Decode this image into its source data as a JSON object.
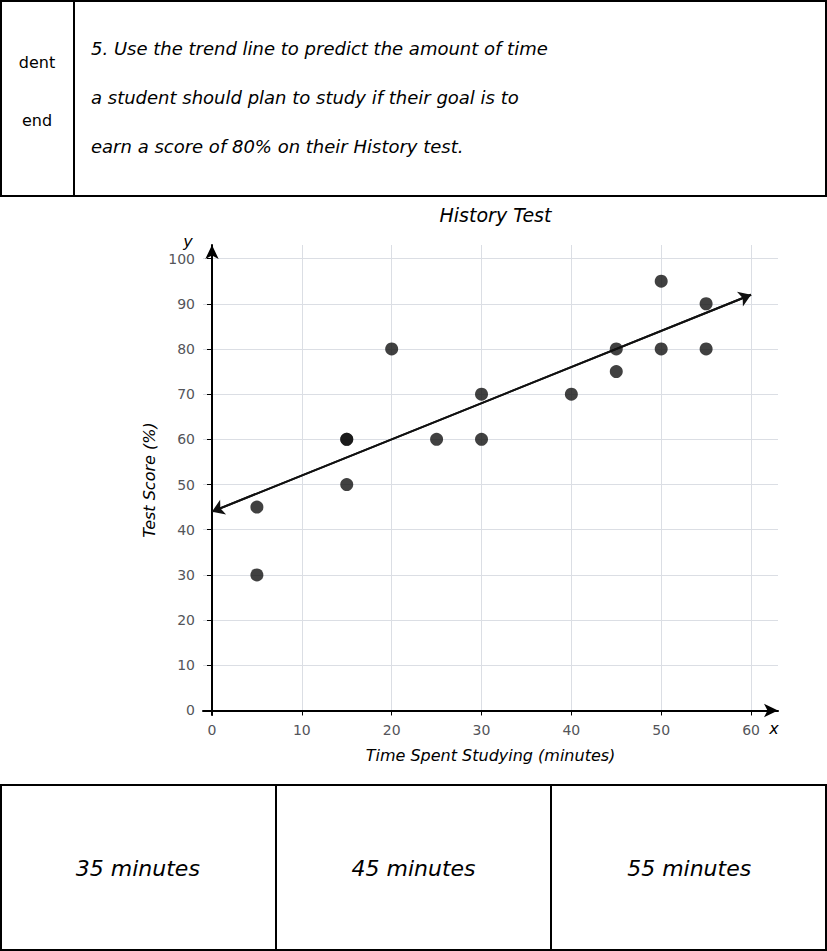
{
  "chart_data": {
    "type": "scatter",
    "title": "History Test",
    "xlabel": "Time Spent Studying (minutes)",
    "ylabel": "Test Score (%)",
    "series": [
      {
        "type": "scatter",
        "color": "#111111",
        "marker": "circle",
        "x": [
          5,
          5,
          15,
          15,
          15,
          20,
          25,
          30,
          30,
          40,
          45,
          45,
          50,
          50,
          55,
          55
        ],
        "values": [
          45,
          30,
          60,
          60,
          50,
          80,
          60,
          70,
          60,
          70,
          80,
          75,
          95,
          80,
          90,
          80
        ]
      },
      {
        "type": "line",
        "color": "#111111",
        "marker": "arrow",
        "line_style": "solid",
        "x": [
          0,
          60
        ],
        "values": [
          44,
          92
        ]
      }
    ],
    "xlim": [
      -1,
      63
    ],
    "ylim": [
      -1,
      103
    ],
    "xticks": [
      0,
      10,
      20,
      30,
      40,
      50,
      60
    ],
    "yticks": [
      0,
      10,
      20,
      30,
      40,
      50,
      60,
      70,
      80,
      90,
      100
    ],
    "grid": true,
    "annotations": {
      "axis_letters": [
        "x",
        "y"
      ],
      "side_labels": [
        "dent",
        "end"
      ],
      "question_lines": [
        "5. Use the trend line to predict the amount of time",
        "a student should plan to study if their goal is to",
        "earn a score of 80% on their History test."
      ],
      "answer_options": [
        "35 minutes",
        "45 minutes",
        "55 minutes"
      ]
    }
  }
}
